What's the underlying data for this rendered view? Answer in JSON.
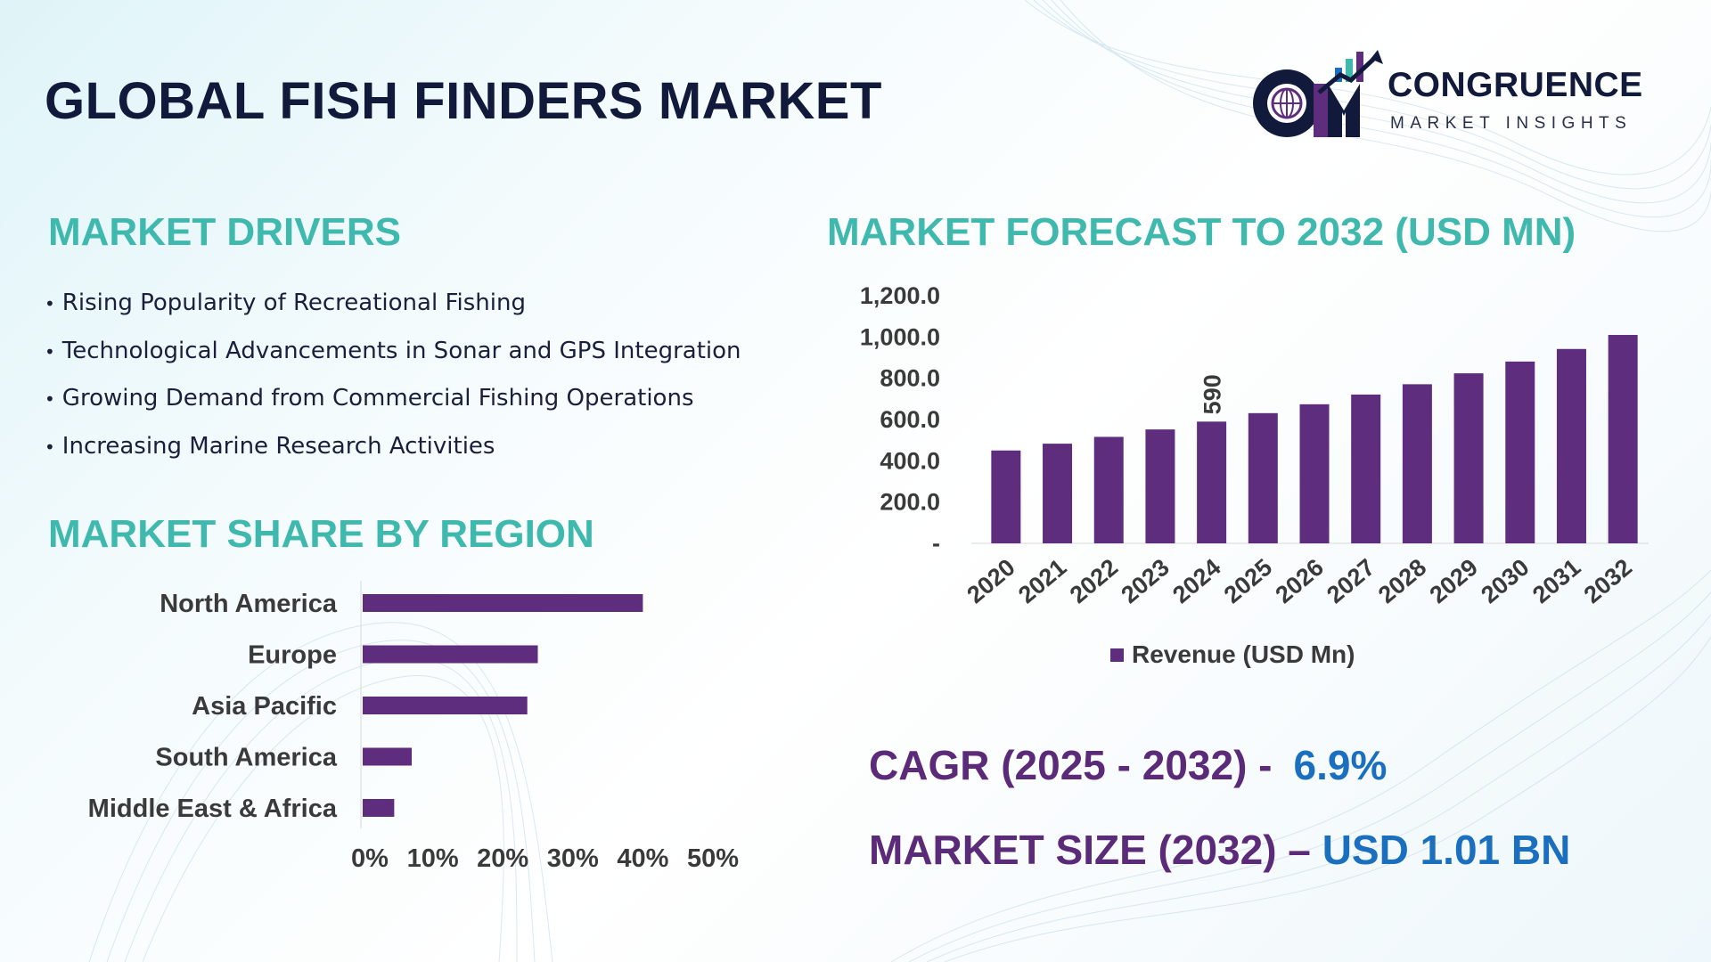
{
  "header": {
    "title": "GLOBAL FISH FINDERS MARKET",
    "logo_name": "CONGRUENCE",
    "logo_subtitle": "MARKET INSIGHTS"
  },
  "drivers": {
    "title": "MARKET DRIVERS",
    "items": [
      "Rising Popularity of Recreational Fishing",
      "Technological Advancements in Sonar and GPS Integration",
      "Growing Demand from Commercial Fishing Operations",
      "Increasing Marine Research Activities"
    ]
  },
  "forecast": {
    "title": "MARKET FORECAST TO 2032 (USD MN)"
  },
  "region": {
    "title": "MARKET SHARE BY REGION"
  },
  "summary": {
    "cagr_label": "CAGR (2025 - 2032) -",
    "cagr_value": "6.9%",
    "size_label": "MARKET SIZE (2032) –",
    "size_value": "USD 1.01 BN"
  },
  "colors": {
    "bar": "#5f2d7d",
    "title_teal": "#3fb9ae",
    "dark_navy": "#121a3c",
    "accent_blue": "#1a6fbf"
  },
  "chart_data": [
    {
      "type": "bar",
      "title": "",
      "categories": [
        "2020",
        "2021",
        "2022",
        "2023",
        "2024",
        "2025",
        "2026",
        "2027",
        "2028",
        "2029",
        "2030",
        "2031",
        "2032"
      ],
      "series": [
        {
          "name": "Revenue (USD Mn)",
          "values": [
            450,
            483,
            516,
            552,
            590,
            631,
            674,
            721,
            771,
            824,
            881,
            942,
            1010
          ]
        }
      ],
      "data_labels": [
        {
          "category": "2024",
          "text": "590"
        }
      ],
      "ylim": [
        0,
        1200
      ],
      "yticks": [
        0,
        200,
        400,
        600,
        800,
        1000,
        1200
      ],
      "ytick_labels": [
        "-",
        "200.0",
        "400.0",
        "600.0",
        "800.0",
        "1,000.0",
        "1,200.0"
      ],
      "legend": "bottom",
      "grid": false
    },
    {
      "type": "bar",
      "orientation": "horizontal",
      "categories": [
        "North America",
        "Europe",
        "Asia Pacific",
        "South America",
        "Middle East & Africa"
      ],
      "values": [
        40,
        25,
        23.5,
        7,
        4.5
      ],
      "xlim": [
        0,
        50
      ],
      "xticks": [
        0,
        10,
        20,
        30,
        40,
        50
      ],
      "xtick_labels": [
        "0%",
        "10%",
        "20%",
        "30%",
        "40%",
        "50%"
      ],
      "grid": false
    }
  ]
}
